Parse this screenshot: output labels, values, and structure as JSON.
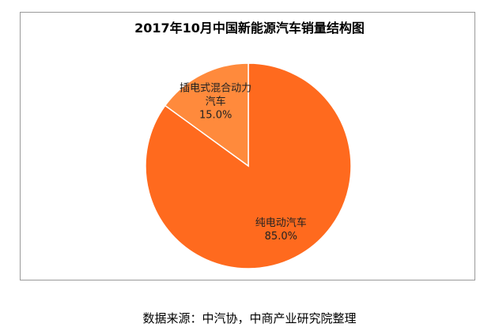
{
  "chart_data": {
    "type": "pie",
    "title": "2017年10月中国新能源汽车销量结构图",
    "categories": [
      "纯电动汽车",
      "插电式混合动力汽车"
    ],
    "values": [
      85,
      15
    ],
    "value_labels": [
      "85.0%",
      "15.0%"
    ],
    "colors": [
      "#ff6a1e",
      "#ff8a3c"
    ],
    "source": "数据来源：中汽协，中商产业研究院整理"
  }
}
